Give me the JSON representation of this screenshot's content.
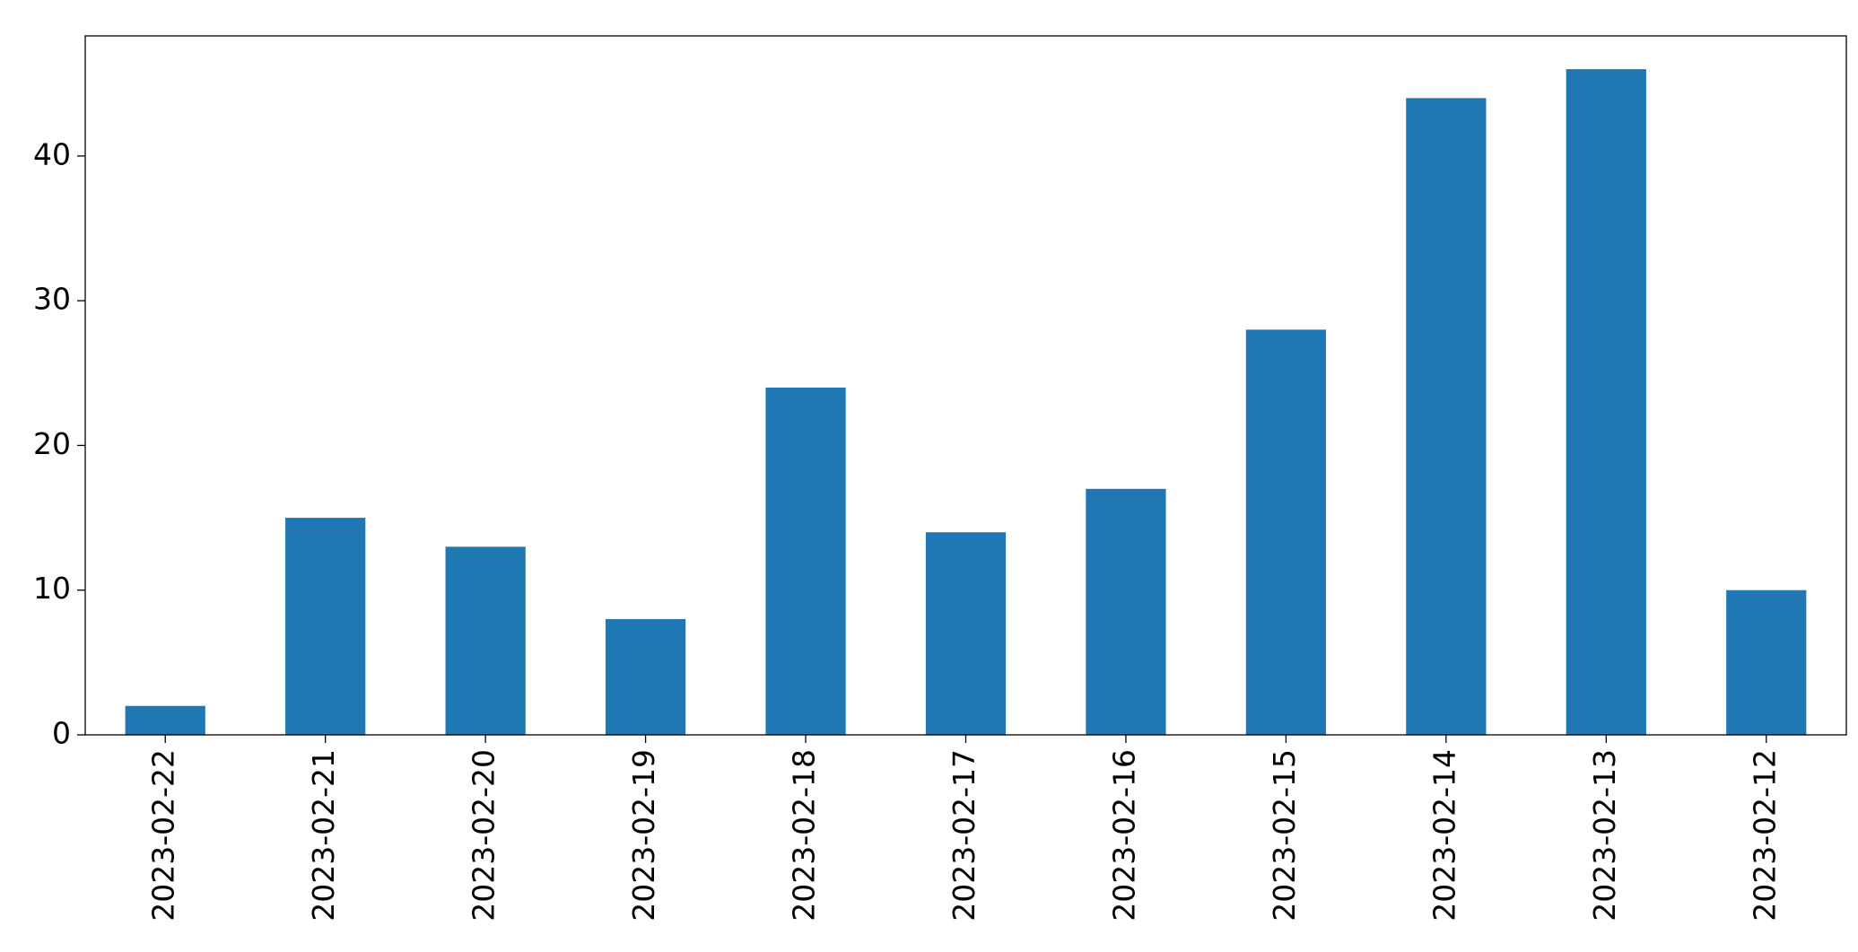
{
  "chart_data": {
    "type": "bar",
    "categories": [
      "2023-02-22",
      "2023-02-21",
      "2023-02-20",
      "2023-02-19",
      "2023-02-18",
      "2023-02-17",
      "2023-02-16",
      "2023-02-15",
      "2023-02-14",
      "2023-02-13",
      "2023-02-12"
    ],
    "values": [
      2,
      15,
      13,
      8,
      24,
      14,
      17,
      28,
      44,
      46,
      10
    ],
    "color": "#1f77b4",
    "ylim": [
      0,
      48.3
    ],
    "yticks": [
      0,
      10,
      20,
      30,
      40
    ],
    "grid": false
  }
}
